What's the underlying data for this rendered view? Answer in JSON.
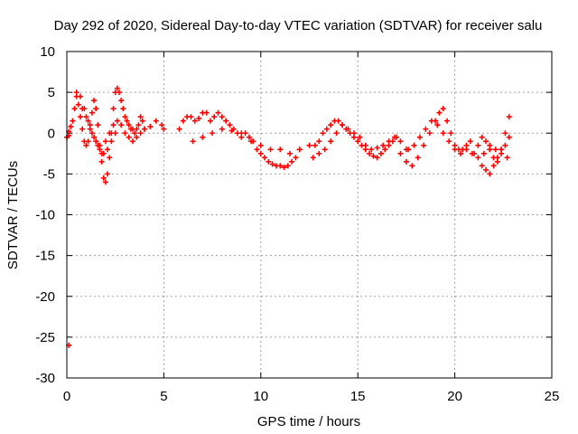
{
  "chart_data": {
    "type": "scatter",
    "title": "Day 292 of 2020, Sidereal Day-to-day VTEC variation (SDTVAR) for receiver salu",
    "xlabel": "GPS time / hours",
    "ylabel": "SDTVAR / TECUs",
    "xlim": [
      0,
      25
    ],
    "ylim": [
      -30,
      10
    ],
    "x_ticks": [
      0,
      5,
      10,
      15,
      20,
      25
    ],
    "y_ticks": [
      -30,
      -25,
      -20,
      -15,
      -10,
      -5,
      0,
      5,
      10
    ],
    "grid": true,
    "marker": "+",
    "series": [
      {
        "name": "SDTVAR",
        "color": "#ff0000",
        "x": [
          0.0,
          0.1,
          0.1,
          0.2,
          0.3,
          0.4,
          0.5,
          0.6,
          0.7,
          0.8,
          0.9,
          1.0,
          1.1,
          1.2,
          1.3,
          1.4,
          1.5,
          1.6,
          1.7,
          1.8,
          1.9,
          2.0,
          2.1,
          2.2,
          2.3,
          2.4,
          2.5,
          2.6,
          2.7,
          2.8,
          2.9,
          3.0,
          3.1,
          3.2,
          3.3,
          3.4,
          3.5,
          3.6,
          3.7,
          3.8,
          3.9,
          4.0,
          0.8,
          1.0,
          1.2,
          1.4,
          1.6,
          1.8,
          2.0,
          2.2,
          2.4,
          2.6,
          2.8,
          3.0,
          3.2,
          3.4,
          3.6,
          3.8,
          4.0,
          4.3,
          4.6,
          4.9,
          5.0,
          0.5,
          0.7,
          0.9,
          1.1,
          1.3,
          1.5,
          1.7,
          1.9,
          2.1,
          2.3,
          2.5,
          5.8,
          6.0,
          6.2,
          6.4,
          6.6,
          6.8,
          7.0,
          7.2,
          7.4,
          7.6,
          7.8,
          8.0,
          8.2,
          8.4,
          8.6,
          8.8,
          9.0,
          9.2,
          9.4,
          9.6,
          9.8,
          10.0,
          10.2,
          10.4,
          10.6,
          10.8,
          11.0,
          11.2,
          11.4,
          11.6,
          11.8,
          12.0,
          6.5,
          7.0,
          7.5,
          8.0,
          8.5,
          9.0,
          9.5,
          10.0,
          10.5,
          11.0,
          11.5,
          12.0,
          12.5,
          12.8,
          13.0,
          13.2,
          13.4,
          13.6,
          13.8,
          14.0,
          14.2,
          14.4,
          14.6,
          14.8,
          15.0,
          15.2,
          15.4,
          15.6,
          15.8,
          16.0,
          16.2,
          16.4,
          16.6,
          16.8,
          17.0,
          12.7,
          13.0,
          13.3,
          13.6,
          13.9,
          14.2,
          14.5,
          14.8,
          15.1,
          15.4,
          15.7,
          16.0,
          16.3,
          16.6,
          16.9,
          17.2,
          17.5,
          17.2,
          17.5,
          17.8,
          18.1,
          18.4,
          18.7,
          19.0,
          19.2,
          19.4,
          19.6,
          19.8,
          20.0,
          20.2,
          20.4,
          20.6,
          20.8,
          21.0,
          21.2,
          21.4,
          21.6,
          21.8,
          22.0,
          22.2,
          22.4,
          22.6,
          22.8,
          17.6,
          17.9,
          18.2,
          18.5,
          18.8,
          19.1,
          19.4,
          19.7,
          20.0,
          20.3,
          20.6,
          20.9,
          21.2,
          21.5,
          21.8,
          22.1,
          22.4,
          22.7,
          21.4,
          21.6,
          21.8,
          22.0,
          22.2,
          22.4,
          22.6,
          22.8,
          0.1
        ],
        "y": [
          -0.5,
          -0.3,
          0.2,
          0.8,
          1.5,
          3.0,
          4.5,
          3.5,
          2.0,
          0.5,
          -1.0,
          -1.5,
          -1.0,
          0.5,
          2.5,
          4.0,
          3.0,
          1.0,
          -1.5,
          -3.5,
          -5.5,
          -6.0,
          -5.0,
          -3.0,
          0.0,
          3.0,
          5.0,
          5.5,
          5.0,
          4.0,
          3.0,
          2.0,
          1.5,
          1.0,
          0.5,
          0.5,
          0.0,
          0.5,
          1.0,
          2.0,
          1.5,
          0.5,
          3.0,
          2.0,
          1.0,
          -0.5,
          -1.5,
          -2.5,
          -1.0,
          0.0,
          1.0,
          1.5,
          1.0,
          0.0,
          -0.5,
          -1.0,
          -0.5,
          0.0,
          0.5,
          0.8,
          1.5,
          1.0,
          0.5,
          5.0,
          4.5,
          3.0,
          1.5,
          0.0,
          -1.0,
          -2.0,
          -2.5,
          -2.0,
          -1.0,
          0.0,
          0.5,
          1.5,
          2.0,
          2.0,
          1.5,
          1.8,
          2.5,
          2.5,
          1.5,
          2.0,
          2.5,
          2.0,
          1.5,
          1.0,
          0.5,
          0.0,
          0.0,
          0.0,
          -0.5,
          -1.0,
          -2.0,
          -2.5,
          -3.0,
          -3.5,
          -3.8,
          -4.0,
          -4.0,
          -4.2,
          -4.0,
          -3.5,
          -3.0,
          -2.0,
          -1.0,
          -0.5,
          0.0,
          0.5,
          0.3,
          -0.5,
          -1.0,
          -1.5,
          -2.0,
          -2.0,
          -2.5,
          -2.0,
          -1.5,
          -1.5,
          -1.0,
          0.0,
          0.5,
          1.0,
          1.5,
          1.5,
          1.0,
          0.5,
          0.0,
          -0.5,
          -1.0,
          -1.5,
          -2.0,
          -2.5,
          -2.8,
          -3.0,
          -2.5,
          -2.0,
          -1.5,
          -1.0,
          -0.5,
          -3.0,
          -2.5,
          -2.0,
          -1.0,
          0.0,
          1.0,
          0.5,
          0.0,
          -0.5,
          -1.5,
          -2.0,
          -1.8,
          -1.5,
          -1.0,
          -0.5,
          -1.0,
          -2.0,
          -2.5,
          -3.5,
          -4.0,
          -3.0,
          -1.5,
          0.0,
          1.5,
          2.5,
          3.0,
          1.5,
          0.0,
          -1.5,
          -2.0,
          -2.0,
          -1.5,
          -1.0,
          -2.5,
          -1.5,
          -0.5,
          -1.0,
          -2.0,
          -3.0,
          -3.5,
          -2.0,
          -1.5,
          -0.5,
          -2.0,
          -1.5,
          -0.5,
          0.5,
          1.5,
          1.0,
          0.0,
          -1.0,
          -2.0,
          -2.5,
          -2.0,
          -2.5,
          -3.0,
          -2.5,
          -1.5,
          -2.0,
          -2.5,
          -3.0,
          -4.0,
          -4.5,
          -5.0,
          -4.0,
          -3.0,
          -2.0,
          0.0,
          2.0,
          -26.0
        ]
      }
    ]
  }
}
